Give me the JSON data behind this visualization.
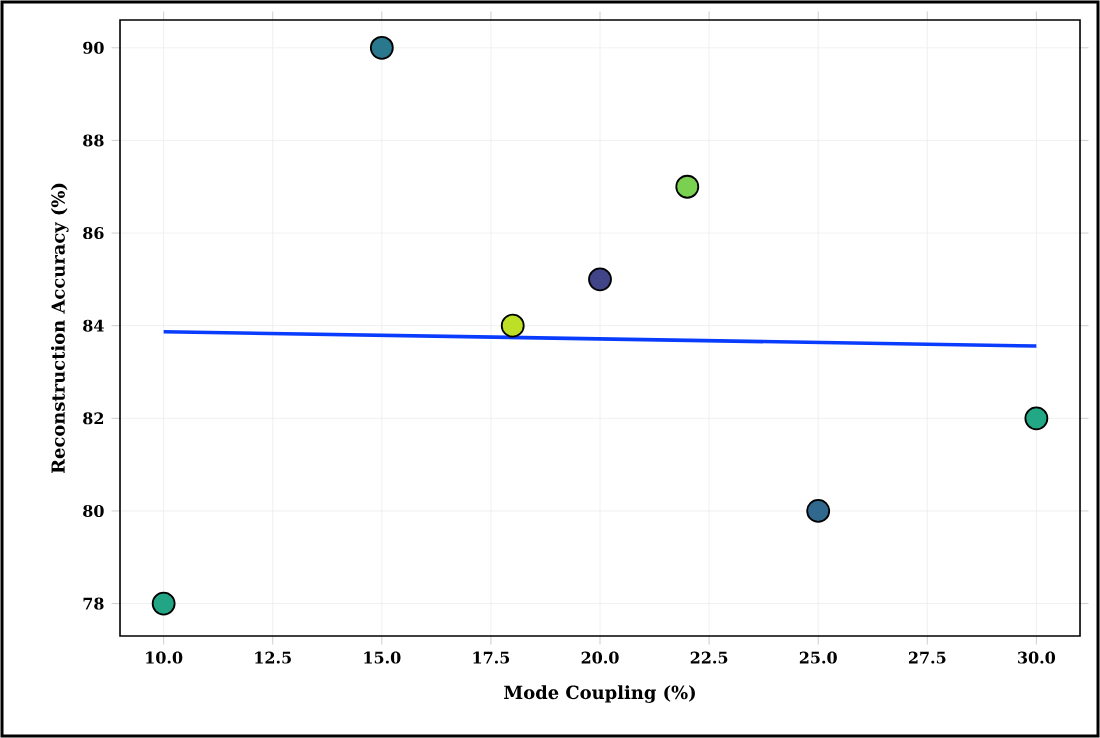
{
  "chart_data": {
    "type": "scatter",
    "xlabel": "Mode Coupling (%)",
    "ylabel": "Reconstruction Accuracy (%)",
    "xlim": [
      9,
      31
    ],
    "ylim": [
      77.3,
      90.6
    ],
    "xticks": [
      {
        "value": 10,
        "label": "10.0"
      },
      {
        "value": 12.5,
        "label": "12.5"
      },
      {
        "value": 15,
        "label": "15.0"
      },
      {
        "value": 17.5,
        "label": "17.5"
      },
      {
        "value": 20,
        "label": "20.0"
      },
      {
        "value": 22.5,
        "label": "22.5"
      },
      {
        "value": 25,
        "label": "25.0"
      },
      {
        "value": 27.5,
        "label": "27.5"
      },
      {
        "value": 30,
        "label": "30.0"
      }
    ],
    "yticks": [
      78,
      80,
      82,
      84,
      86,
      88,
      90
    ],
    "grid": true,
    "series": [
      {
        "x": [
          10,
          15,
          18,
          20,
          22,
          25,
          30
        ],
        "values": [
          78,
          90,
          84,
          85,
          87,
          80,
          82
        ],
        "colors": [
          "#21a585",
          "#2a788e",
          "#bddf26",
          "#414487",
          "#7ad151",
          "#31688e",
          "#22a884"
        ]
      },
      {
        "type": "line",
        "x": [
          10,
          30
        ],
        "values": [
          83.87,
          83.56
        ],
        "color": "#0a3cff",
        "line_style": "solid"
      }
    ]
  }
}
